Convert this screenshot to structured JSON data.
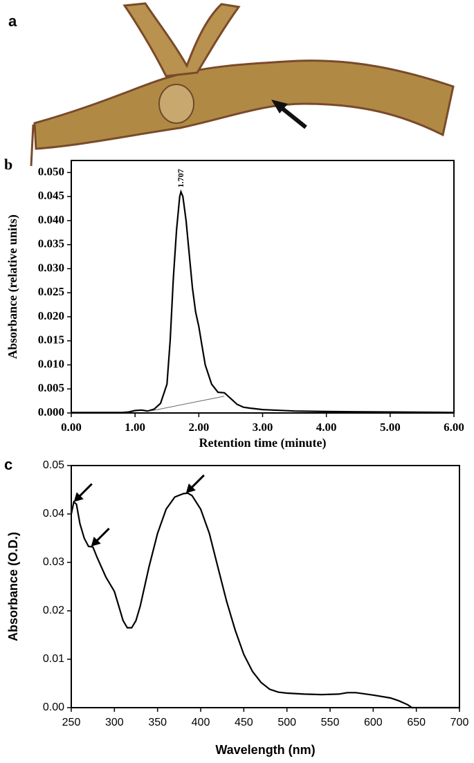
{
  "image": {
    "label": "a"
  },
  "chart_data": [
    {
      "type": "line",
      "label": "b",
      "xlabel": "Retention time (minute)",
      "ylabel": "Absorbance (relative units)",
      "xlim": [
        0,
        6
      ],
      "ylim": [
        0,
        0.0525
      ],
      "xticks": [
        {
          "value": 0,
          "label": "0.00"
        },
        {
          "value": 1,
          "label": "1.00"
        },
        {
          "value": 2,
          "label": "2.00"
        },
        {
          "value": 3,
          "label": "3.00"
        },
        {
          "value": 4,
          "label": "4.00"
        },
        {
          "value": 5,
          "label": "5.00"
        },
        {
          "value": 6,
          "label": "6.00"
        }
      ],
      "yticks": [
        {
          "value": 0,
          "label": "0.000"
        },
        {
          "value": 0.005,
          "label": "0.005"
        },
        {
          "value": 0.01,
          "label": "0.010"
        },
        {
          "value": 0.015,
          "label": "0.015"
        },
        {
          "value": 0.02,
          "label": "0.020"
        },
        {
          "value": 0.025,
          "label": "0.025"
        },
        {
          "value": 0.03,
          "label": "0.030"
        },
        {
          "value": 0.035,
          "label": "0.035"
        },
        {
          "value": 0.04,
          "label": "0.040"
        },
        {
          "value": 0.045,
          "label": "0.045"
        },
        {
          "value": 0.05,
          "label": "0.050"
        }
      ],
      "color": "#000000",
      "x": [
        0,
        0.8,
        0.9,
        1.0,
        1.1,
        1.2,
        1.3,
        1.4,
        1.5,
        1.55,
        1.6,
        1.65,
        1.7,
        1.72,
        1.75,
        1.8,
        1.85,
        1.9,
        1.95,
        2.0,
        2.05,
        2.1,
        2.2,
        2.3,
        2.4,
        2.5,
        2.6,
        2.7,
        2.8,
        3.0,
        3.5,
        4.0,
        5.0,
        6.0
      ],
      "values": [
        0.0001,
        0.0001,
        0.0002,
        0.0005,
        0.0006,
        0.0004,
        0.0008,
        0.002,
        0.006,
        0.015,
        0.028,
        0.038,
        0.045,
        0.046,
        0.045,
        0.04,
        0.033,
        0.026,
        0.021,
        0.018,
        0.014,
        0.01,
        0.006,
        0.0043,
        0.0042,
        0.003,
        0.0018,
        0.0012,
        0.001,
        0.0007,
        0.0004,
        0.0003,
        0.0002,
        0.0001
      ],
      "baseline_x": [
        1.2,
        2.4
      ],
      "baseline_values": [
        0.0003,
        0.0035
      ],
      "peak_label": {
        "x": 1.707,
        "y": 0.046,
        "text": "1.707"
      }
    },
    {
      "type": "line",
      "label": "c",
      "xlabel": "Wavelength (nm)",
      "ylabel": "Absorbance (O.D.)",
      "xlim": [
        250,
        700
      ],
      "ylim": [
        0,
        0.05
      ],
      "xticks": [
        250,
        300,
        350,
        400,
        450,
        500,
        550,
        600,
        650,
        700
      ],
      "yticks": [
        {
          "value": 0,
          "label": "0.00"
        },
        {
          "value": 0.01,
          "label": "0.01"
        },
        {
          "value": 0.02,
          "label": "0.02"
        },
        {
          "value": 0.03,
          "label": "0.03"
        },
        {
          "value": 0.04,
          "label": "0.04"
        },
        {
          "value": 0.05,
          "label": "0.05"
        }
      ],
      "color": "#000000",
      "x": [
        250,
        253,
        256,
        260,
        265,
        270,
        275,
        280,
        290,
        300,
        305,
        310,
        315,
        320,
        325,
        330,
        340,
        350,
        360,
        370,
        380,
        385,
        390,
        400,
        410,
        420,
        430,
        440,
        450,
        460,
        470,
        480,
        490,
        500,
        520,
        540,
        560,
        570,
        580,
        600,
        620,
        630,
        640,
        645,
        650,
        700
      ],
      "values": [
        0.04,
        0.0425,
        0.042,
        0.038,
        0.035,
        0.0333,
        0.0332,
        0.031,
        0.027,
        0.024,
        0.021,
        0.018,
        0.0165,
        0.0165,
        0.018,
        0.021,
        0.029,
        0.036,
        0.041,
        0.0435,
        0.0442,
        0.0443,
        0.0438,
        0.041,
        0.036,
        0.029,
        0.022,
        0.016,
        0.011,
        0.0075,
        0.0052,
        0.0038,
        0.0032,
        0.003,
        0.0028,
        0.0027,
        0.0028,
        0.0031,
        0.0031,
        0.0026,
        0.002,
        0.0014,
        0.0006,
        0,
        0,
        0
      ],
      "arrows": [
        {
          "x": 253,
          "y": 0.0425
        },
        {
          "x": 273,
          "y": 0.0333
        },
        {
          "x": 383,
          "y": 0.0443
        }
      ]
    }
  ]
}
